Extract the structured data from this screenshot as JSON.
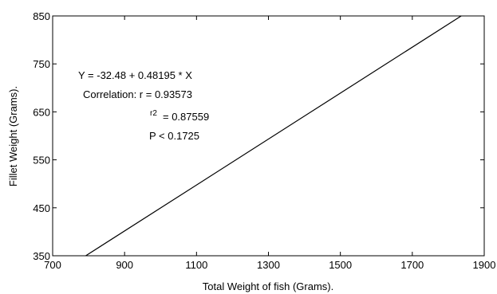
{
  "chart_data": {
    "type": "line",
    "title": "",
    "xlabel": "Total Weight of fish (Grams).",
    "ylabel": "Fillet Weight (Grams).",
    "xlim": [
      700,
      1900
    ],
    "ylim": [
      350,
      850
    ],
    "x_ticks": [
      700,
      900,
      1100,
      1300,
      1500,
      1700,
      1900
    ],
    "y_ticks": [
      350,
      450,
      550,
      650,
      750,
      850
    ],
    "grid": false,
    "legend": "none",
    "series": [
      {
        "x": [
          792,
          1836
        ],
        "y": [
          350,
          850
        ]
      }
    ],
    "line_color": "#000000",
    "annotations": {
      "equation": "Y = -32.48 + 0.48195 * X",
      "correlation": "Correlation: r = 0.93573",
      "r2_symbol": "r2",
      "r2_value": "= 0.87559",
      "p_value": "P < 0.1725"
    }
  }
}
